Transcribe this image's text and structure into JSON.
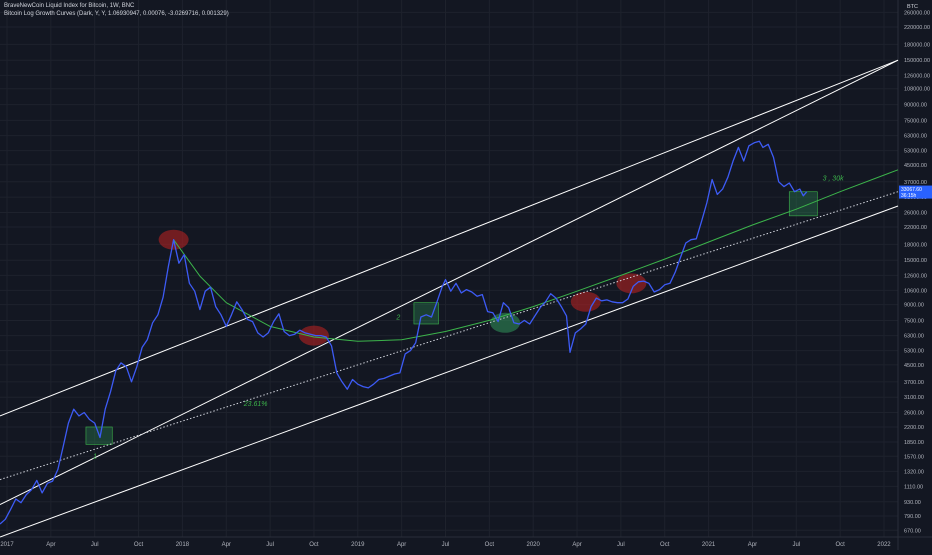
{
  "header": {
    "title": "BraveNewCoin Liquid Index for Bitcoin, 1W, BNC",
    "indicator": "Bitcoin Log Growth Curves (Dark, Y, Y, 1.06930947, 0.00076, -3.0269716, 0.001329)"
  },
  "chart_data": {
    "type": "line",
    "y_scale": "log",
    "currency": "BTC",
    "ylim": [
      620,
      300000
    ],
    "y_ticks": [
      260000,
      220000,
      180000,
      150000,
      126000,
      108000,
      90000,
      75000,
      63000,
      53000,
      45000,
      37000,
      31000,
      26000,
      22000,
      18000,
      15000,
      12600,
      10600,
      9000,
      7500,
      6300,
      5300,
      4500,
      3700,
      3100,
      2600,
      2200,
      1850,
      1570,
      1320,
      1110,
      930,
      790,
      670
    ],
    "y_tick_labels": [
      "260000.00",
      "220000.00",
      "180000.00",
      "150000.00",
      "126000.00",
      "108000.00",
      "90000.00",
      "75000.00",
      "63000.00",
      "53000.00",
      "45000.00",
      "37000.00",
      "31000.00",
      "26000.00",
      "22000.00",
      "18000.00",
      "15000.00",
      "12600.00",
      "10600.00",
      "9000.00",
      "7500.00",
      "6300.00",
      "5300.00",
      "4500.00",
      "3700.00",
      "3100.00",
      "2600.00",
      "2200.00",
      "1850.00",
      "1570.00",
      "1320.00",
      "1110.00",
      "930.00",
      "790.00",
      "670.00"
    ],
    "x_ticks": [
      2017.0,
      2017.25,
      2017.5,
      2017.75,
      2018.0,
      2018.25,
      2018.5,
      2018.75,
      2019.0,
      2019.25,
      2019.5,
      2019.75,
      2020.0,
      2020.25,
      2020.5,
      2020.75,
      2021.0,
      2021.25,
      2021.5,
      2021.75,
      2022.0
    ],
    "x_tick_labels": [
      "2017",
      "Apr",
      "Jul",
      "Oct",
      "2018",
      "Apr",
      "Jul",
      "Oct",
      "2019",
      "Apr",
      "Jul",
      "Oct",
      "2020",
      "Apr",
      "Jul",
      "Oct",
      "2021",
      "Apr",
      "Jul",
      "Oct",
      "2022"
    ],
    "xlim": [
      2016.96,
      2022.08
    ],
    "price_label": "33067.60",
    "price_sub": "36:15h",
    "price_value": 33067.6,
    "series": [
      {
        "color": "#3d5bf5",
        "points": [
          [
            2016.96,
            720
          ],
          [
            2016.99,
            760
          ],
          [
            2017.02,
            850
          ],
          [
            2017.05,
            960
          ],
          [
            2017.08,
            920
          ],
          [
            2017.11,
            1010
          ],
          [
            2017.14,
            1070
          ],
          [
            2017.17,
            1190
          ],
          [
            2017.2,
            1030
          ],
          [
            2017.23,
            1150
          ],
          [
            2017.26,
            1180
          ],
          [
            2017.29,
            1350
          ],
          [
            2017.32,
            1750
          ],
          [
            2017.35,
            2300
          ],
          [
            2017.38,
            2700
          ],
          [
            2017.41,
            2500
          ],
          [
            2017.44,
            2600
          ],
          [
            2017.47,
            2400
          ],
          [
            2017.5,
            2300
          ],
          [
            2017.53,
            1950
          ],
          [
            2017.56,
            2700
          ],
          [
            2017.59,
            3300
          ],
          [
            2017.62,
            4200
          ],
          [
            2017.65,
            4600
          ],
          [
            2017.68,
            4400
          ],
          [
            2017.71,
            3700
          ],
          [
            2017.74,
            4400
          ],
          [
            2017.77,
            5500
          ],
          [
            2017.8,
            6000
          ],
          [
            2017.83,
            7300
          ],
          [
            2017.86,
            8000
          ],
          [
            2017.89,
            9800
          ],
          [
            2017.92,
            14000
          ],
          [
            2017.95,
            19000
          ],
          [
            2017.98,
            14500
          ],
          [
            2018.01,
            16000
          ],
          [
            2018.04,
            11500
          ],
          [
            2018.07,
            10500
          ],
          [
            2018.1,
            8500
          ],
          [
            2018.13,
            10500
          ],
          [
            2018.16,
            11000
          ],
          [
            2018.19,
            8800
          ],
          [
            2018.22,
            8000
          ],
          [
            2018.25,
            7000
          ],
          [
            2018.28,
            8000
          ],
          [
            2018.31,
            9300
          ],
          [
            2018.34,
            8500
          ],
          [
            2018.37,
            7600
          ],
          [
            2018.4,
            7400
          ],
          [
            2018.43,
            6500
          ],
          [
            2018.46,
            6200
          ],
          [
            2018.49,
            6500
          ],
          [
            2018.52,
            7400
          ],
          [
            2018.55,
            8100
          ],
          [
            2018.58,
            6600
          ],
          [
            2018.61,
            6300
          ],
          [
            2018.64,
            6400
          ],
          [
            2018.67,
            6700
          ],
          [
            2018.7,
            6500
          ],
          [
            2018.73,
            6400
          ],
          [
            2018.76,
            6300
          ],
          [
            2018.79,
            6300
          ],
          [
            2018.82,
            6200
          ],
          [
            2018.85,
            5600
          ],
          [
            2018.88,
            4100
          ],
          [
            2018.91,
            3700
          ],
          [
            2018.94,
            3400
          ],
          [
            2018.97,
            3800
          ],
          [
            2019.0,
            3600
          ],
          [
            2019.03,
            3500
          ],
          [
            2019.06,
            3450
          ],
          [
            2019.09,
            3600
          ],
          [
            2019.12,
            3800
          ],
          [
            2019.15,
            3850
          ],
          [
            2019.18,
            3950
          ],
          [
            2019.21,
            4050
          ],
          [
            2019.24,
            4100
          ],
          [
            2019.27,
            5100
          ],
          [
            2019.3,
            5300
          ],
          [
            2019.33,
            5800
          ],
          [
            2019.36,
            7800
          ],
          [
            2019.39,
            8000
          ],
          [
            2019.42,
            7800
          ],
          [
            2019.45,
            9200
          ],
          [
            2019.48,
            11000
          ],
          [
            2019.5,
            12000
          ],
          [
            2019.53,
            10500
          ],
          [
            2019.56,
            11500
          ],
          [
            2019.59,
            10300
          ],
          [
            2019.62,
            10700
          ],
          [
            2019.65,
            10400
          ],
          [
            2019.68,
            9900
          ],
          [
            2019.71,
            10100
          ],
          [
            2019.74,
            8300
          ],
          [
            2019.77,
            8200
          ],
          [
            2019.8,
            7400
          ],
          [
            2019.83,
            9200
          ],
          [
            2019.86,
            8700
          ],
          [
            2019.89,
            7300
          ],
          [
            2019.92,
            7200
          ],
          [
            2019.95,
            7500
          ],
          [
            2019.98,
            7200
          ],
          [
            2020.01,
            7900
          ],
          [
            2020.04,
            8700
          ],
          [
            2020.07,
            9300
          ],
          [
            2020.1,
            10200
          ],
          [
            2020.13,
            9700
          ],
          [
            2020.16,
            8800
          ],
          [
            2020.19,
            7900
          ],
          [
            2020.21,
            5200
          ],
          [
            2020.24,
            6500
          ],
          [
            2020.27,
            6800
          ],
          [
            2020.3,
            7200
          ],
          [
            2020.33,
            8800
          ],
          [
            2020.36,
            9700
          ],
          [
            2020.39,
            9400
          ],
          [
            2020.42,
            9500
          ],
          [
            2020.45,
            9300
          ],
          [
            2020.48,
            9200
          ],
          [
            2020.51,
            9200
          ],
          [
            2020.54,
            9600
          ],
          [
            2020.57,
            11100
          ],
          [
            2020.6,
            11700
          ],
          [
            2020.63,
            11800
          ],
          [
            2020.66,
            11500
          ],
          [
            2020.69,
            10400
          ],
          [
            2020.72,
            10700
          ],
          [
            2020.75,
            11300
          ],
          [
            2020.78,
            11500
          ],
          [
            2020.81,
            13100
          ],
          [
            2020.84,
            15500
          ],
          [
            2020.87,
            18300
          ],
          [
            2020.9,
            19000
          ],
          [
            2020.93,
            19200
          ],
          [
            2020.96,
            23500
          ],
          [
            2020.99,
            29000
          ],
          [
            2021.02,
            38000
          ],
          [
            2021.05,
            32000
          ],
          [
            2021.08,
            34000
          ],
          [
            2021.11,
            39000
          ],
          [
            2021.14,
            47000
          ],
          [
            2021.17,
            55000
          ],
          [
            2021.2,
            47000
          ],
          [
            2021.23,
            56000
          ],
          [
            2021.26,
            58000
          ],
          [
            2021.29,
            59000
          ],
          [
            2021.31,
            55000
          ],
          [
            2021.34,
            57000
          ],
          [
            2021.37,
            49000
          ],
          [
            2021.4,
            37000
          ],
          [
            2021.43,
            35000
          ],
          [
            2021.46,
            36500
          ],
          [
            2021.49,
            33000
          ],
          [
            2021.52,
            34000
          ],
          [
            2021.54,
            31500
          ],
          [
            2021.56,
            33000
          ]
        ]
      },
      {
        "color": "#3cb44b",
        "dash": false,
        "points": [
          [
            2017.95,
            19000
          ],
          [
            2018.1,
            12500
          ],
          [
            2018.25,
            9200
          ],
          [
            2018.5,
            7000
          ],
          [
            2018.75,
            6200
          ],
          [
            2019.0,
            5900
          ],
          [
            2019.25,
            6000
          ],
          [
            2019.5,
            6600
          ],
          [
            2019.75,
            7500
          ],
          [
            2020.0,
            8800
          ],
          [
            2020.25,
            10500
          ],
          [
            2020.5,
            12600
          ],
          [
            2020.75,
            15200
          ],
          [
            2021.0,
            18500
          ],
          [
            2021.25,
            22500
          ],
          [
            2021.5,
            27000
          ],
          [
            2021.75,
            33000
          ],
          [
            2022.08,
            42500
          ]
        ]
      },
      {
        "color": "#d1d4dc",
        "dash": true,
        "points": [
          [
            2016.96,
            1200
          ],
          [
            2022.08,
            33000
          ]
        ]
      },
      {
        "color": "#ffffff",
        "dash": false,
        "points": [
          [
            2016.96,
            900
          ],
          [
            2022.08,
            150000
          ]
        ]
      },
      {
        "color": "#ffffff",
        "dash": false,
        "points": [
          [
            2016.96,
            2500
          ],
          [
            2022.08,
            150000
          ]
        ]
      },
      {
        "color": "#ffffff",
        "dash": false,
        "points": [
          [
            2016.96,
            620
          ],
          [
            2022.08,
            28000
          ]
        ]
      }
    ],
    "annotations": {
      "ellipses": [
        {
          "x": 2017.95,
          "y": 19000,
          "color": "#b22222"
        },
        {
          "x": 2018.75,
          "y": 6300,
          "color": "#b22222"
        },
        {
          "x": 2020.3,
          "y": 9300,
          "color": "#b22222"
        },
        {
          "x": 2020.56,
          "y": 11500,
          "color": "#b22222"
        },
        {
          "x": 2019.84,
          "y": 7300,
          "color": "#2e8b57"
        }
      ],
      "boxes": [
        {
          "x0": 2017.45,
          "x1": 2017.6,
          "y0": 1800,
          "y1": 2200
        },
        {
          "x0": 2019.32,
          "x1": 2019.46,
          "y0": 7200,
          "y1": 9200
        },
        {
          "x0": 2021.46,
          "x1": 2021.62,
          "y0": 25000,
          "y1": 33000
        }
      ],
      "labels": [
        {
          "text": "1",
          "x": 2017.49,
          "y": 1530
        },
        {
          "text": "2",
          "x": 2019.22,
          "y": 7600
        },
        {
          "text": "3 , 30k",
          "x": 2021.65,
          "y": 37500
        },
        {
          "text": "23.61%",
          "x": 2018.35,
          "y": 2800
        }
      ]
    }
  }
}
